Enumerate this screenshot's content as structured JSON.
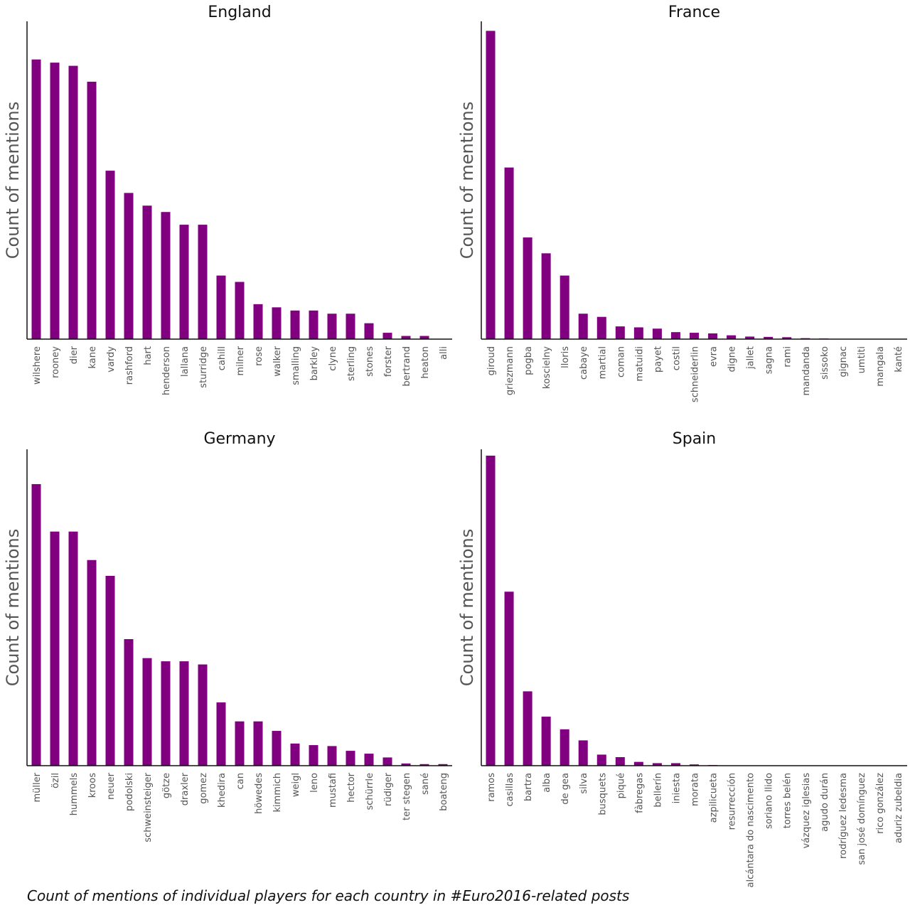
{
  "caption": "Count of mentions of individual players for each country in #Euro2016-related posts",
  "colors": {
    "bar": "#800080",
    "axis": "#111111"
  },
  "chart_data": [
    {
      "type": "bar",
      "title": "England",
      "ylabel": "Count of mentions",
      "xlabel": "",
      "ylim": [
        0,
        100
      ],
      "categories": [
        "wilshere",
        "rooney",
        "dier",
        "kane",
        "vardy",
        "rashford",
        "hart",
        "henderson",
        "lallana",
        "sturridge",
        "cahill",
        "milner",
        "rose",
        "walker",
        "smalling",
        "barkley",
        "clyne",
        "sterling",
        "stones",
        "forster",
        "bertrand",
        "heaton",
        "alli"
      ],
      "values": [
        88,
        87,
        86,
        81,
        53,
        46,
        42,
        40,
        36,
        36,
        20,
        18,
        11,
        10,
        9,
        9,
        8,
        8,
        5,
        2,
        1,
        1,
        0
      ]
    },
    {
      "type": "bar",
      "title": "France",
      "ylabel": "Count of mentions",
      "xlabel": "",
      "ylim": [
        0,
        100
      ],
      "categories": [
        "giroud",
        "griezmann",
        "pogba",
        "koscielny",
        "lloris",
        "cabaye",
        "martial",
        "coman",
        "matuidi",
        "payet",
        "costil",
        "schneiderlin",
        "evra",
        "digne",
        "jallet",
        "sagna",
        "rami",
        "mandanda",
        "sissoko",
        "gignac",
        "umtiti",
        "mangala",
        "kanté"
      ],
      "values": [
        97,
        54,
        32,
        27,
        20,
        8,
        7,
        4,
        3.7,
        3.3,
        2.2,
        2,
        1.8,
        1.2,
        0.8,
        0.7,
        0.6,
        0.3,
        0.2,
        0,
        0,
        0,
        0
      ]
    },
    {
      "type": "bar",
      "title": "Germany",
      "ylabel": "Count of mentions",
      "xlabel": "",
      "ylim": [
        0,
        100
      ],
      "categories": [
        "müller",
        "özil",
        "hummels",
        "kroos",
        "neuer",
        "podolski",
        "schweinsteiger",
        "götze",
        "draxler",
        "gomez",
        "khedira",
        "can",
        "höwedes",
        "kimmich",
        "weigl",
        "leno",
        "mustafi",
        "hector",
        "schürrle",
        "rüdiger",
        "ter stegen",
        "sané",
        "boateng"
      ],
      "values": [
        89,
        74,
        74,
        65,
        60,
        40,
        34,
        33,
        33,
        32,
        20,
        14,
        14,
        11,
        7,
        6.5,
        6.2,
        4.7,
        3.8,
        2.6,
        0.7,
        0.5,
        0.5
      ]
    },
    {
      "type": "bar",
      "title": "Spain",
      "ylabel": "Count of mentions",
      "xlabel": "",
      "ylim": [
        0,
        100
      ],
      "categories": [
        "ramos",
        "casillas",
        "bartra",
        "alba",
        "de gea",
        "silva",
        "busquets",
        "piqué",
        "fàbregas",
        "bellerín",
        "iniesta",
        "morata",
        "azpilicueta",
        "resurrección",
        "alcántara do nascimento",
        "soriano llido",
        "torres belén",
        "vázquez iglesias",
        "agudo durán",
        "rodríguez ledesma",
        "san josé domínguez",
        "rico gonzález",
        "aduriz zubeldia"
      ],
      "values": [
        98,
        55,
        23.5,
        15.5,
        11.5,
        8,
        3.5,
        2.7,
        1.2,
        0.8,
        0.8,
        0.4,
        0.2,
        0,
        0,
        0,
        0,
        0,
        0,
        0,
        0,
        0,
        0
      ]
    }
  ]
}
